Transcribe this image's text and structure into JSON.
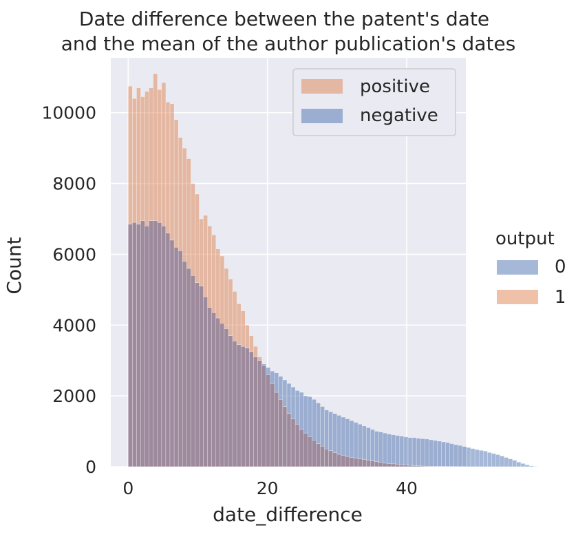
{
  "chart_data": {
    "type": "bar",
    "title": [
      "Date difference between the patent's date",
      "and the mean of the author publication's dates"
    ],
    "xlabel": "date_difference",
    "ylabel": "Count",
    "xlim": [
      -2.5,
      48.5
    ],
    "ylim": [
      0,
      11550
    ],
    "xticks": [
      0,
      20,
      40
    ],
    "xtick_labels": [
      "0",
      "20",
      "40"
    ],
    "yticks": [
      0,
      2000,
      4000,
      6000,
      8000,
      10000
    ],
    "ytick_labels": [
      "0",
      "2000",
      "4000",
      "6000",
      "8000",
      "10000"
    ],
    "grid": true,
    "bin_width": 0.6,
    "x_start": 0,
    "series": [
      {
        "name": "0",
        "color": "#4c72b0",
        "values": [
          6850,
          6900,
          6850,
          6950,
          6800,
          6950,
          6950,
          6900,
          6800,
          6600,
          6400,
          6200,
          6100,
          5800,
          5600,
          5400,
          5200,
          5100,
          4800,
          4500,
          4350,
          4200,
          4050,
          3900,
          3700,
          3550,
          3450,
          3400,
          3350,
          3250,
          3100,
          3000,
          2900,
          2800,
          2700,
          2650,
          2550,
          2450,
          2350,
          2250,
          2150,
          2100,
          2000,
          1980,
          1900,
          1800,
          1700,
          1600,
          1550,
          1500,
          1450,
          1400,
          1350,
          1300,
          1250,
          1200,
          1150,
          1100,
          1050,
          1000,
          980,
          950,
          920,
          900,
          880,
          860,
          840,
          820,
          820,
          800,
          790,
          780,
          760,
          740,
          720,
          700,
          680,
          650,
          620,
          600,
          570,
          540,
          510,
          480,
          460,
          440,
          400,
          370,
          340,
          300,
          260,
          220,
          180,
          130,
          90,
          50,
          25,
          10
        ]
      },
      {
        "name": "1",
        "color": "#dd8452",
        "values": [
          10750,
          10400,
          10700,
          10450,
          10600,
          10700,
          11100,
          10650,
          10850,
          10300,
          10250,
          9800,
          9300,
          9000,
          8700,
          8000,
          7700,
          7000,
          7100,
          6800,
          6550,
          6150,
          5950,
          5600,
          5300,
          4950,
          4600,
          4400,
          4000,
          3700,
          3400,
          3100,
          2850,
          2600,
          2350,
          2100,
          1900,
          1700,
          1500,
          1350,
          1200,
          1050,
          950,
          850,
          750,
          650,
          580,
          500,
          450,
          400,
          350,
          320,
          290,
          260,
          240,
          220,
          200,
          180,
          160,
          140,
          120,
          100,
          90,
          80,
          70,
          60,
          50,
          40,
          30,
          25,
          20,
          15,
          12,
          10,
          8,
          6,
          5,
          4,
          3,
          2,
          2,
          1,
          1,
          1,
          0,
          0,
          0,
          0,
          0,
          0,
          0,
          0,
          0,
          0,
          0,
          0,
          0
        ]
      }
    ],
    "overlap_color": "#9d8a9c",
    "inner_legend": [
      {
        "label": "positive",
        "color": "#dd8452"
      },
      {
        "label": "negative",
        "color": "#4c72b0"
      }
    ],
    "outer_legend": {
      "title": "output",
      "entries": [
        {
          "label": "0",
          "color": "#4c72b0"
        },
        {
          "label": "1",
          "color": "#dd8452"
        }
      ]
    }
  }
}
